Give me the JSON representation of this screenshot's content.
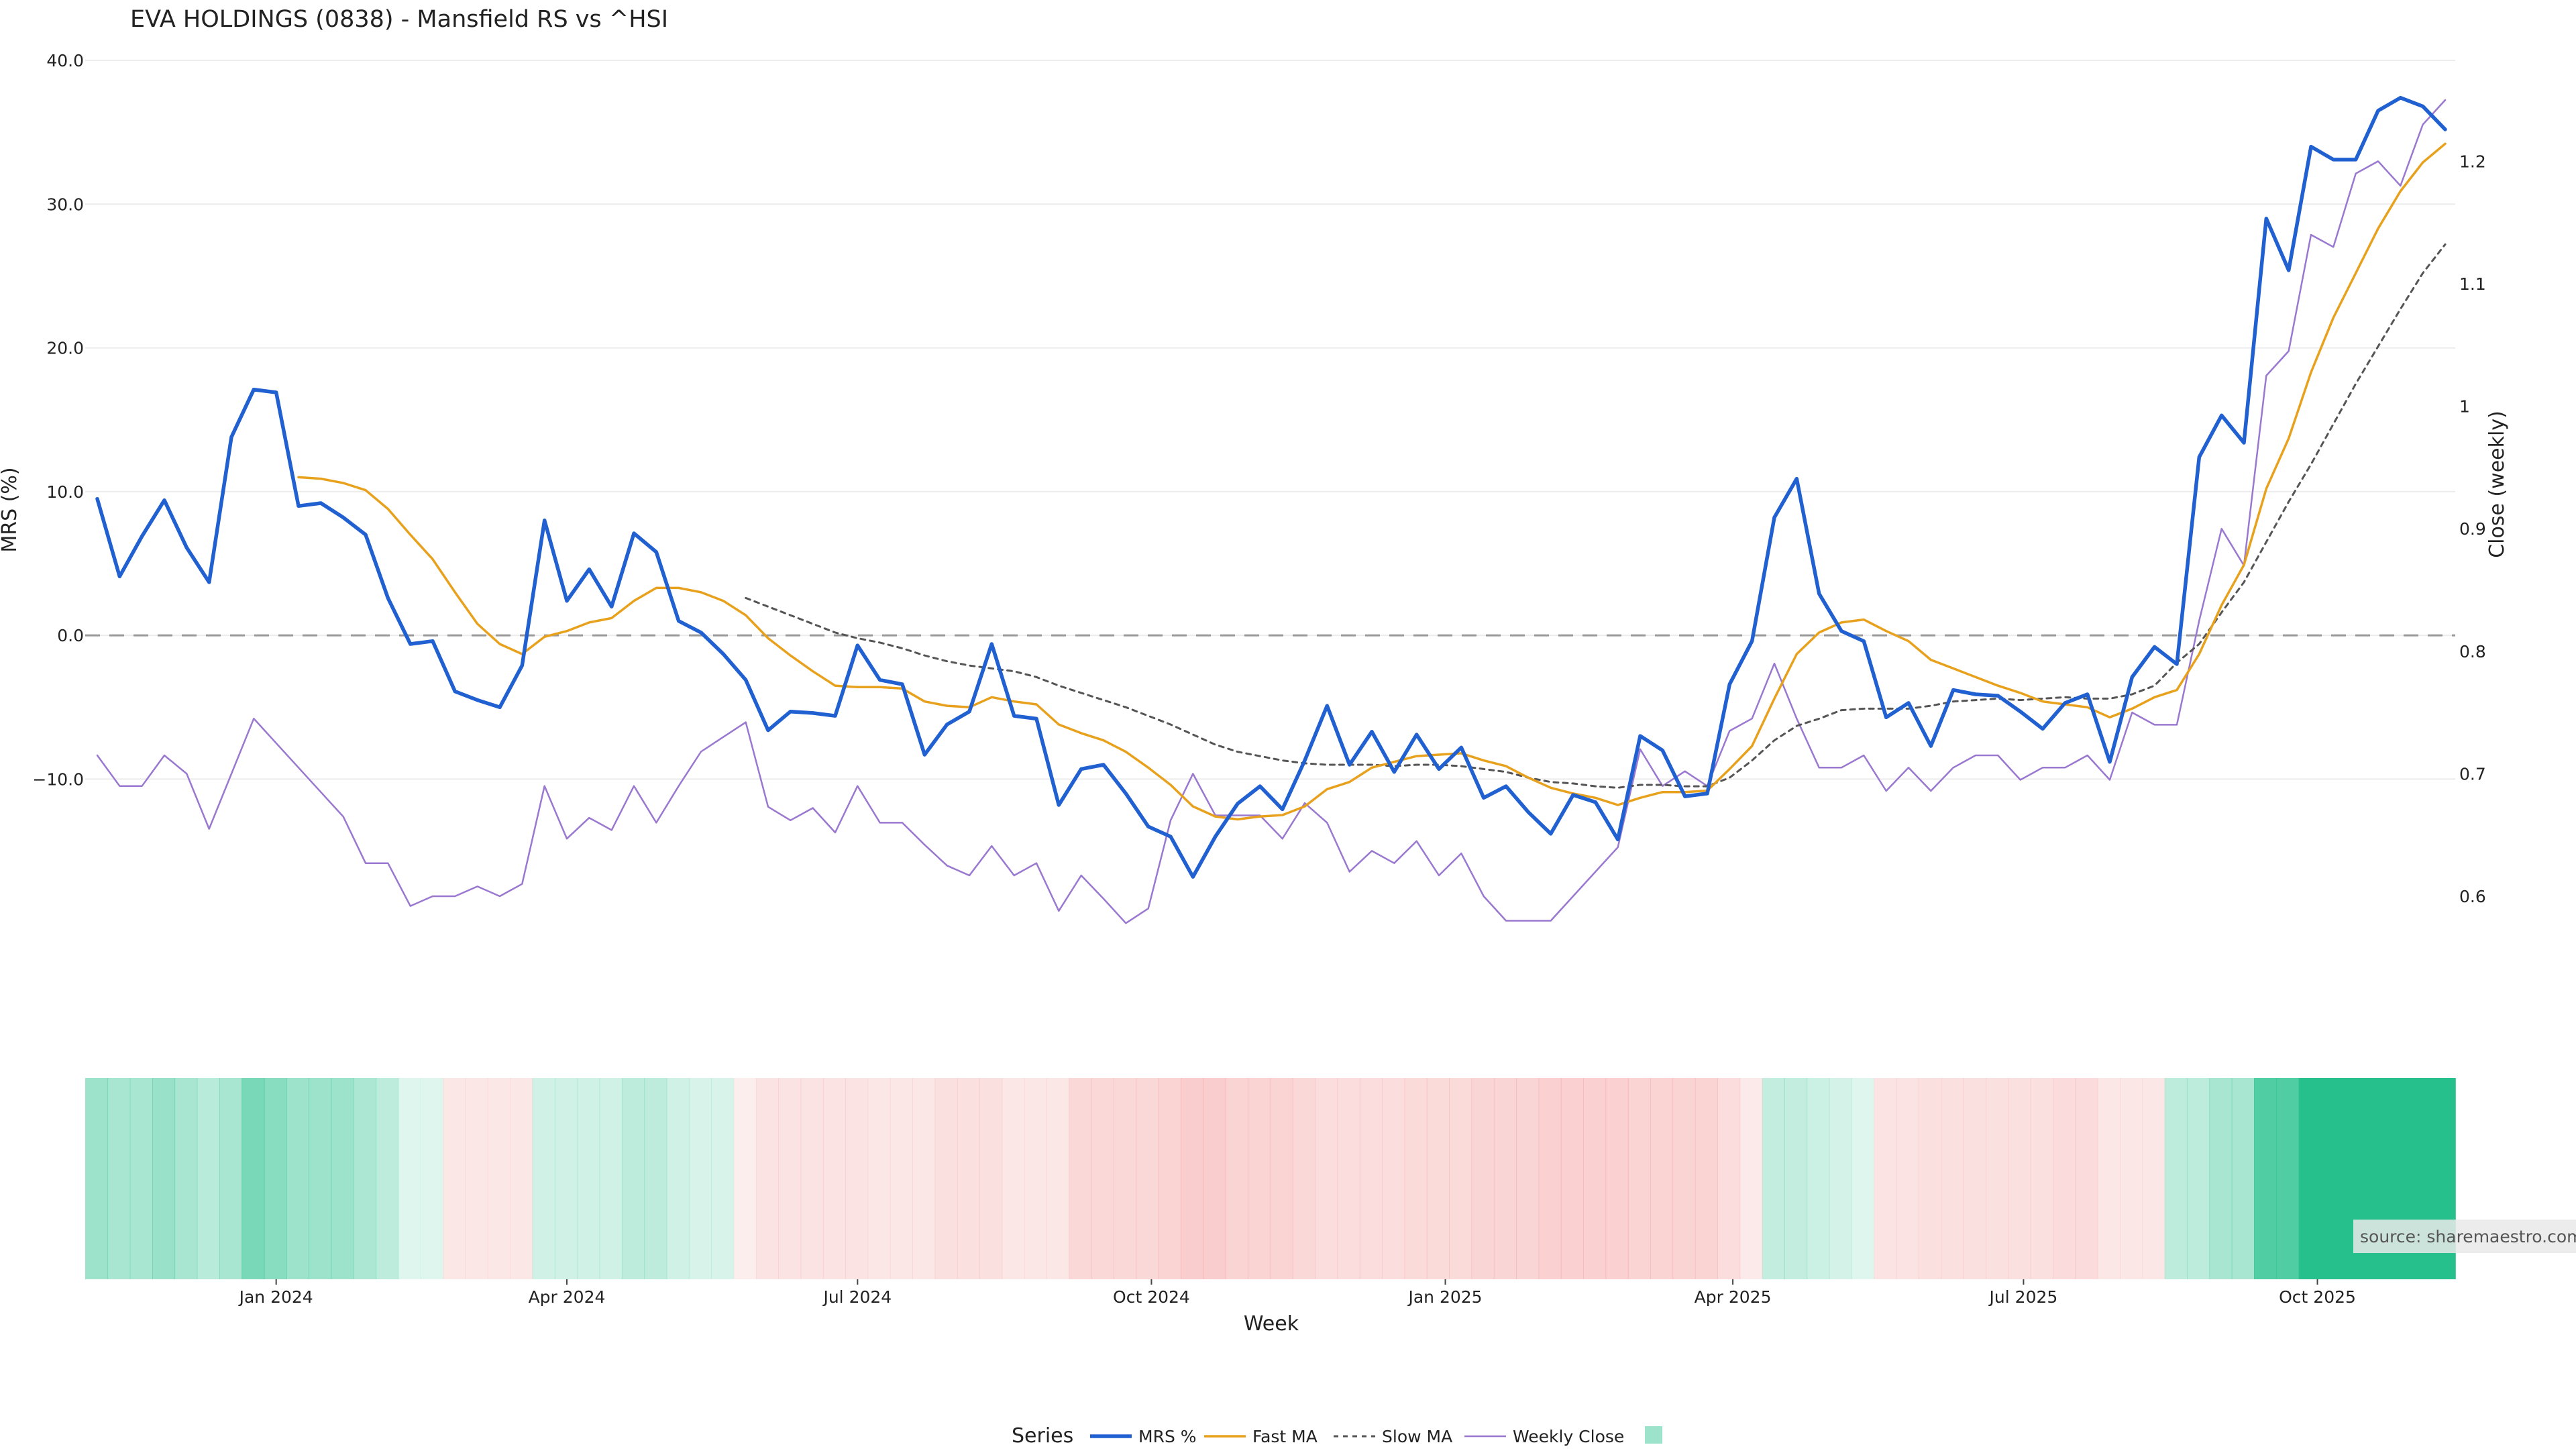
{
  "chart_data": {
    "type": "line",
    "title": "EVA HOLDINGS (0838) - Mansfield RS vs ^HSI",
    "xlabel": "Week",
    "ylabel": "MRS (%)",
    "y2label": "Close (weekly)",
    "x_start": "2023-11-06",
    "x_interval": "weekly",
    "x_ticks": [
      {
        "label": "Jan 2024",
        "date": "2024-01-01"
      },
      {
        "label": "Apr 2024",
        "date": "2024-04-01"
      },
      {
        "label": "Jul 2024",
        "date": "2024-07-01"
      },
      {
        "label": "Oct 2024",
        "date": "2024-10-01"
      },
      {
        "label": "Jan 2025",
        "date": "2025-01-01"
      },
      {
        "label": "Apr 2025",
        "date": "2025-04-01"
      },
      {
        "label": "Jul 2025",
        "date": "2025-07-01"
      },
      {
        "label": "Oct 2025",
        "date": "2025-10-01"
      }
    ],
    "y_ticks": [
      "−10.0",
      "0.0",
      "10.0",
      "20.0",
      "30.0",
      "40.0"
    ],
    "ylim": [
      -23,
      40
    ],
    "y2_ticks": [
      "0.6",
      "0.7",
      "0.8",
      "0.9",
      "1",
      "1.1",
      "1.2"
    ],
    "y2lim": [
      0.47,
      1.27
    ],
    "zero_line": 0,
    "grid": true,
    "legend": {
      "title": "Series",
      "position": "bottom",
      "entries": [
        "MRS %",
        "Fast MA",
        "Slow MA",
        "Weekly Close",
        ""
      ]
    },
    "source": "source: sharemaestro.com",
    "colors": {
      "mrs": "#2060d0",
      "fast": "#e8a11c",
      "slow": "#555555",
      "close": "#9a78d0",
      "band_positive": "#26c08d",
      "band_negative": "#f29090",
      "zero_line": "#999999",
      "grid": "#ececec"
    },
    "series": [
      {
        "name": "MRS %",
        "axis": "left",
        "start_index": 0,
        "values": [
          9.5,
          4.1,
          6.9,
          9.4,
          6.1,
          3.7,
          13.8,
          17.1,
          16.9,
          9.0,
          9.2,
          8.2,
          7.0,
          2.6,
          -0.6,
          -0.4,
          -3.9,
          -4.5,
          -5.0,
          -2.1,
          8.0,
          2.4,
          4.6,
          2.0,
          7.1,
          5.8,
          1.0,
          0.2,
          -1.3,
          -3.1,
          -6.6,
          -5.3,
          -5.4,
          -5.6,
          -0.7,
          -3.1,
          -3.4,
          -8.3,
          -6.2,
          -5.3,
          -0.6,
          -5.6,
          -5.8,
          -11.8,
          -9.3,
          -9.0,
          -11.0,
          -13.3,
          -14.0,
          -16.8,
          -14.0,
          -11.7,
          -10.5,
          -12.1,
          -8.7,
          -4.9,
          -9.0,
          -6.7,
          -9.5,
          -6.9,
          -9.3,
          -7.8,
          -11.3,
          -10.5,
          -12.3,
          -13.8,
          -11.1,
          -11.6,
          -14.2,
          -7.0,
          -8.0,
          -11.2,
          -11.0,
          -3.4,
          -0.4,
          8.2,
          10.9,
          2.9,
          0.3,
          -0.4,
          -5.7,
          -4.7,
          -7.7,
          -3.8,
          -4.1,
          -4.2,
          -5.3,
          -6.5,
          -4.7,
          -4.1,
          -8.8,
          -2.9,
          -0.8,
          -2.0,
          12.4,
          15.3,
          13.4,
          29.0,
          25.4,
          34.0,
          33.1,
          33.1,
          36.5,
          37.4,
          36.8,
          35.2
        ]
      },
      {
        "name": "Fast MA",
        "axis": "left",
        "start_index": 9,
        "values": [
          11.0,
          10.9,
          10.6,
          10.1,
          8.8,
          7.0,
          5.3,
          3.0,
          0.8,
          -0.6,
          -1.3,
          -0.1,
          0.3,
          0.9,
          1.2,
          2.4,
          3.3,
          3.3,
          3.0,
          2.4,
          1.4,
          -0.2,
          -1.4,
          -2.5,
          -3.5,
          -3.6,
          -3.6,
          -3.7,
          -4.6,
          -4.9,
          -5.0,
          -4.3,
          -4.6,
          -4.8,
          -6.2,
          -6.8,
          -7.3,
          -8.1,
          -9.2,
          -10.4,
          -11.9,
          -12.6,
          -12.8,
          -12.6,
          -12.5,
          -11.9,
          -10.7,
          -10.2,
          -9.2,
          -8.8,
          -8.4,
          -8.3,
          -8.2,
          -8.7,
          -9.1,
          -9.9,
          -10.6,
          -11.0,
          -11.3,
          -11.8,
          -11.3,
          -10.9,
          -10.9,
          -10.8,
          -9.3,
          -7.7,
          -4.4,
          -1.3,
          0.2,
          0.9,
          1.1,
          0.3,
          -0.4,
          -1.7,
          -2.3,
          -2.9,
          -3.5,
          -4.0,
          -4.6,
          -4.8,
          -5.0,
          -5.7,
          -5.1,
          -4.3,
          -3.8,
          -1.3,
          2.1,
          4.9,
          10.2,
          13.7,
          18.3,
          22.1,
          25.2,
          28.3,
          30.9,
          32.9,
          34.2
        ]
      },
      {
        "name": "Slow MA",
        "axis": "left",
        "start_index": 29,
        "values": [
          2.6,
          2.0,
          1.4,
          0.8,
          0.2,
          -0.2,
          -0.5,
          -0.9,
          -1.4,
          -1.8,
          -2.1,
          -2.3,
          -2.5,
          -2.9,
          -3.5,
          -4.0,
          -4.5,
          -5.0,
          -5.6,
          -6.2,
          -6.9,
          -7.6,
          -8.1,
          -8.4,
          -8.7,
          -8.9,
          -9.0,
          -9.0,
          -9.0,
          -9.1,
          -9.0,
          -9.0,
          -9.1,
          -9.3,
          -9.5,
          -9.9,
          -10.2,
          -10.3,
          -10.5,
          -10.6,
          -10.4,
          -10.4,
          -10.5,
          -10.5,
          -9.9,
          -8.7,
          -7.3,
          -6.3,
          -5.8,
          -5.2,
          -5.1,
          -5.1,
          -5.1,
          -4.9,
          -4.6,
          -4.5,
          -4.4,
          -4.5,
          -4.4,
          -4.3,
          -4.4,
          -4.4,
          -4.1,
          -3.5,
          -1.9,
          -0.6,
          1.6,
          3.7,
          6.5,
          9.3,
          11.9,
          14.7,
          17.5,
          20.1,
          22.7,
          25.2,
          27.2
        ]
      },
      {
        "name": "Weekly Close",
        "axis": "right",
        "start_index": 0,
        "values": [
          0.715,
          0.69,
          0.69,
          0.715,
          0.7,
          0.655,
          0.7,
          0.745,
          0.725,
          0.705,
          0.685,
          0.665,
          0.627,
          0.627,
          0.592,
          0.6,
          0.6,
          0.608,
          0.6,
          0.61,
          0.69,
          0.647,
          0.664,
          0.654,
          0.69,
          0.66,
          0.69,
          0.718,
          0.73,
          0.742,
          0.673,
          0.662,
          0.672,
          0.652,
          0.69,
          0.66,
          0.66,
          0.642,
          0.625,
          0.617,
          0.641,
          0.617,
          0.627,
          0.588,
          0.617,
          0.598,
          0.578,
          0.59,
          0.662,
          0.7,
          0.666,
          0.666,
          0.666,
          0.647,
          0.676,
          0.66,
          0.62,
          0.637,
          0.627,
          0.645,
          0.617,
          0.635,
          0.6,
          0.58,
          0.58,
          0.58,
          0.6,
          0.62,
          0.64,
          0.72,
          0.69,
          0.702,
          0.69,
          0.735,
          0.745,
          0.79,
          0.745,
          0.705,
          0.705,
          0.715,
          0.686,
          0.705,
          0.686,
          0.705,
          0.715,
          0.715,
          0.695,
          0.705,
          0.705,
          0.715,
          0.695,
          0.75,
          0.74,
          0.74,
          0.825,
          0.9,
          0.87,
          1.025,
          1.045,
          1.14,
          1.13,
          1.19,
          1.2,
          1.18,
          1.23,
          1.25
        ]
      }
    ],
    "band": [
      0.45,
      0.4,
      0.4,
      0.47,
      0.4,
      0.32,
      0.4,
      0.62,
      0.55,
      0.45,
      0.45,
      0.45,
      0.38,
      0.3,
      0.15,
      0.15,
      -0.22,
      -0.22,
      -0.22,
      -0.22,
      0.22,
      0.22,
      0.22,
      0.22,
      0.3,
      0.3,
      0.22,
      0.18,
      0.18,
      -0.15,
      -0.25,
      -0.25,
      -0.25,
      -0.25,
      -0.25,
      -0.22,
      -0.22,
      -0.22,
      -0.28,
      -0.28,
      -0.28,
      -0.22,
      -0.22,
      -0.22,
      -0.35,
      -0.35,
      -0.35,
      -0.35,
      -0.4,
      -0.45,
      -0.45,
      -0.4,
      -0.4,
      -0.4,
      -0.35,
      -0.3,
      -0.3,
      -0.3,
      -0.3,
      -0.33,
      -0.33,
      -0.33,
      -0.38,
      -0.38,
      -0.38,
      -0.42,
      -0.42,
      -0.42,
      -0.42,
      -0.4,
      -0.4,
      -0.4,
      -0.4,
      -0.3,
      -0.2,
      0.28,
      0.28,
      0.24,
      0.2,
      0.15,
      -0.25,
      -0.25,
      -0.28,
      -0.28,
      -0.28,
      -0.28,
      -0.28,
      -0.28,
      -0.32,
      -0.32,
      -0.22,
      -0.22,
      -0.22,
      0.3,
      0.3,
      0.4,
      0.4,
      0.8,
      0.8,
      1.0,
      1.0,
      1.0,
      1.0,
      1.0,
      1.0,
      1.0
    ]
  }
}
